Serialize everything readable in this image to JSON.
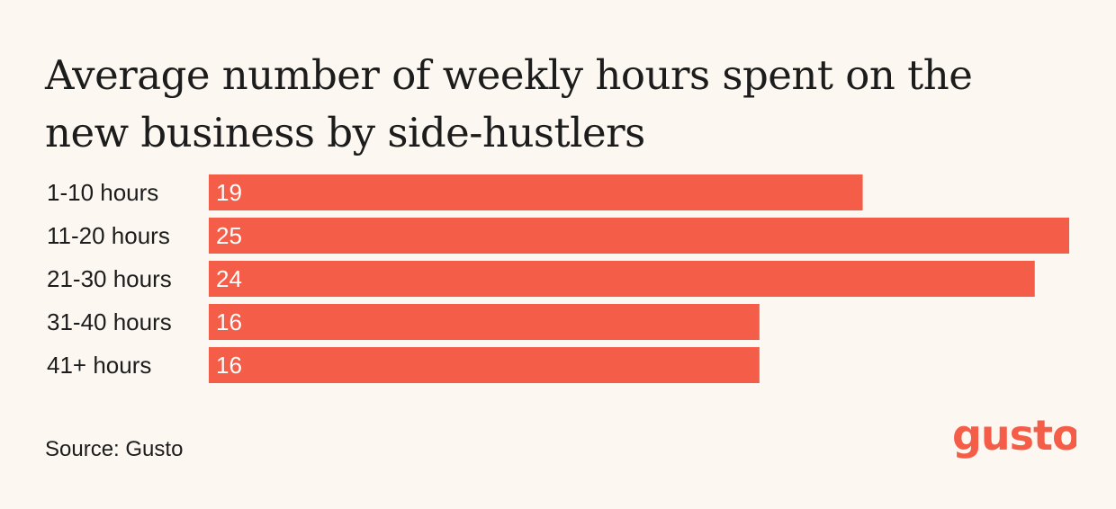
{
  "chart_data": {
    "type": "bar",
    "orientation": "horizontal",
    "title": "Average number of weekly hours spent on the new business by side-hustlers",
    "categories": [
      "1-10 hours",
      "11-20 hours",
      "21-30 hours",
      "31-40 hours",
      "41+ hours"
    ],
    "values": [
      19,
      25,
      24,
      16,
      16
    ],
    "xlim": [
      0,
      25
    ],
    "grid": false,
    "legend": "none",
    "bar_color": "#f45d48"
  },
  "source": "Source: Gusto",
  "logo": {
    "text": "gusto",
    "color": "#f45d48"
  },
  "colors": {
    "background": "#fcf8f1",
    "text": "#1c1c1c",
    "bar": "#f45d48",
    "bar_label": "#ffffff"
  }
}
